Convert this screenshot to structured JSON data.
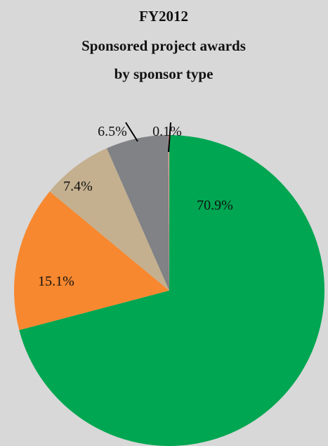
{
  "chart_data": {
    "type": "pie",
    "title": [
      "FY2012",
      "Sponsored project awards",
      "by sponsor type"
    ],
    "values": [
      70.9,
      15.1,
      7.4,
      6.5,
      0.1
    ],
    "value_labels": [
      "70.9%",
      "15.1%",
      "7.4%",
      "6.5%",
      "0.1%"
    ],
    "colors": [
      "#00a651",
      "#f7882f",
      "#c4b08f",
      "#808285",
      "#f2a49b"
    ]
  }
}
